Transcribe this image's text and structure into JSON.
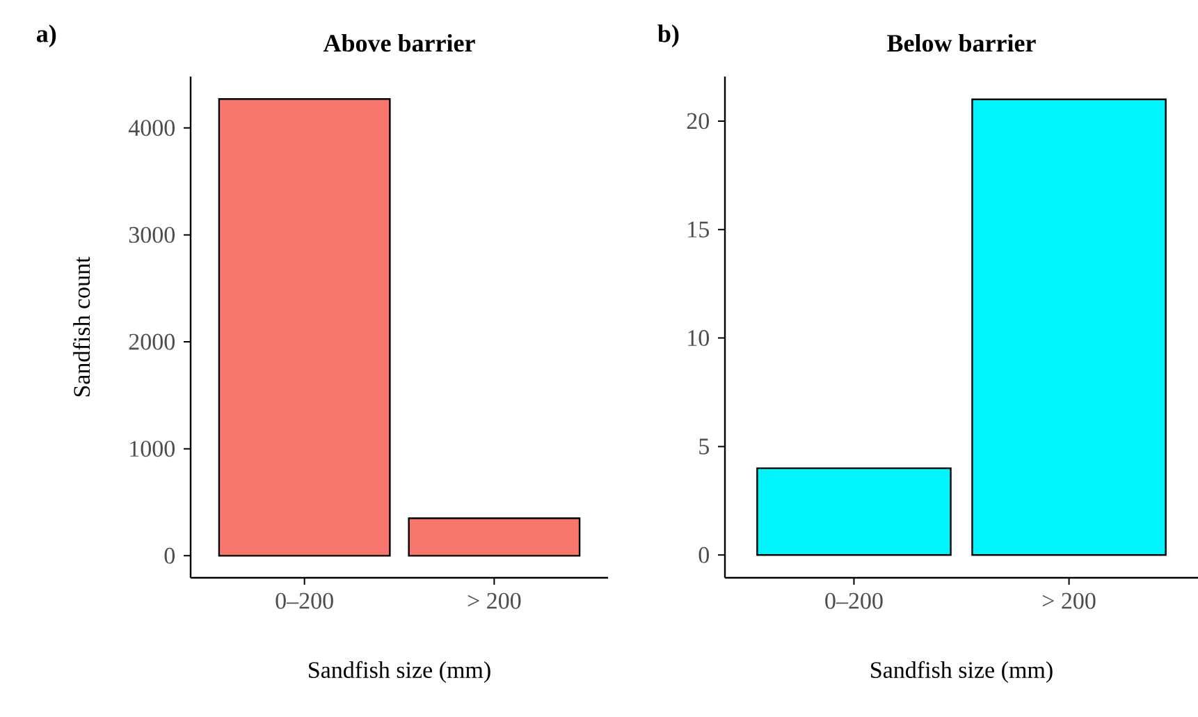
{
  "chart_data": [
    {
      "type": "bar",
      "title": "Above barrier",
      "xlabel": "Sandfish size (mm)",
      "ylabel": "Sandfish count",
      "annotations": [
        "a)"
      ],
      "categories": [
        "0–200",
        "> 200"
      ],
      "values": [
        4270,
        350
      ],
      "color": "#f8766d",
      "ylim": [
        -206,
        4480
      ],
      "yticks": [
        0,
        1000,
        2000,
        3000,
        4000
      ]
    },
    {
      "type": "bar",
      "title": "Below barrier",
      "xlabel": "Sandfish size (mm)",
      "annotations": [
        "b)"
      ],
      "categories": [
        "0–200",
        "> 200"
      ],
      "values": [
        4,
        21
      ],
      "color": "#00f5ff",
      "ylim": [
        -1.05,
        22.05
      ],
      "yticks": [
        0,
        5,
        10,
        15,
        20
      ]
    }
  ]
}
